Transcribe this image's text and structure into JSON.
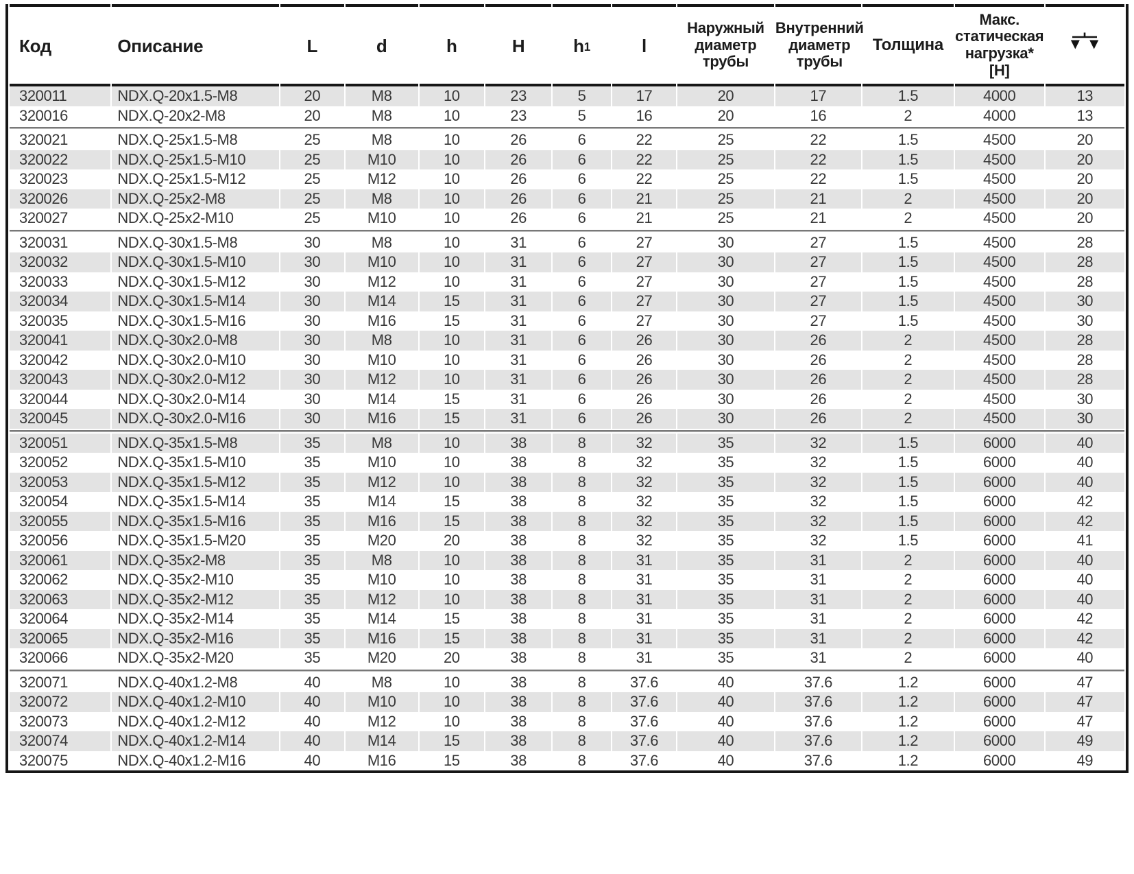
{
  "style": {
    "stripe_color": "#e3e3e3",
    "border_color": "#161616",
    "group_separator_color": "#787878",
    "data_text_color": "#383838",
    "header_text_color": "#1c1c1c"
  },
  "table": {
    "columns": [
      {
        "id": "code",
        "label": "Код",
        "align": "left"
      },
      {
        "id": "description",
        "label": "Описание",
        "align": "left"
      },
      {
        "id": "L",
        "label": "L",
        "align": "center"
      },
      {
        "id": "d",
        "label": "d",
        "align": "center"
      },
      {
        "id": "h",
        "label": "h",
        "align": "center"
      },
      {
        "id": "H",
        "label": "H",
        "align": "center"
      },
      {
        "id": "h1",
        "label": "h",
        "label_sub": "1",
        "align": "center"
      },
      {
        "id": "l",
        "label": "l",
        "align": "center"
      },
      {
        "id": "outer_pipe_diameter",
        "label": "Наружный\nдиаметр\nтрубы",
        "align": "center"
      },
      {
        "id": "inner_pipe_diameter",
        "label": "Внутренний\nдиаметр\nтрубы",
        "align": "center"
      },
      {
        "id": "thickness",
        "label": "Толщина",
        "align": "center"
      },
      {
        "id": "max_static_load",
        "label": "Макс.\nстатическая\nнагрузка*\n[Н]",
        "align": "center"
      },
      {
        "id": "weight",
        "label": "",
        "icon": "balance-scale-icon",
        "align": "center"
      }
    ],
    "groups": [
      {
        "first_shade": "gray",
        "rows": [
          [
            "320011",
            "NDX.Q-20x1.5-M8",
            "20",
            "M8",
            "10",
            "23",
            "5",
            "17",
            "20",
            "17",
            "1.5",
            "4000",
            "13"
          ],
          [
            "320016",
            "NDX.Q-20x2-M8",
            "20",
            "M8",
            "10",
            "23",
            "5",
            "16",
            "20",
            "16",
            "2",
            "4000",
            "13"
          ]
        ]
      },
      {
        "first_shade": "white",
        "rows": [
          [
            "320021",
            "NDX.Q-25x1.5-M8",
            "25",
            "M8",
            "10",
            "26",
            "6",
            "22",
            "25",
            "22",
            "1.5",
            "4500",
            "20"
          ],
          [
            "320022",
            "NDX.Q-25x1.5-M10",
            "25",
            "M10",
            "10",
            "26",
            "6",
            "22",
            "25",
            "22",
            "1.5",
            "4500",
            "20"
          ],
          [
            "320023",
            "NDX.Q-25x1.5-M12",
            "25",
            "M12",
            "10",
            "26",
            "6",
            "22",
            "25",
            "22",
            "1.5",
            "4500",
            "20"
          ],
          [
            "320026",
            "NDX.Q-25x2-M8",
            "25",
            "M8",
            "10",
            "26",
            "6",
            "21",
            "25",
            "21",
            "2",
            "4500",
            "20"
          ],
          [
            "320027",
            "NDX.Q-25x2-M10",
            "25",
            "M10",
            "10",
            "26",
            "6",
            "21",
            "25",
            "21",
            "2",
            "4500",
            "20"
          ]
        ]
      },
      {
        "first_shade": "white",
        "rows": [
          [
            "320031",
            "NDX.Q-30x1.5-M8",
            "30",
            "M8",
            "10",
            "31",
            "6",
            "27",
            "30",
            "27",
            "1.5",
            "4500",
            "28"
          ],
          [
            "320032",
            "NDX.Q-30x1.5-M10",
            "30",
            "M10",
            "10",
            "31",
            "6",
            "27",
            "30",
            "27",
            "1.5",
            "4500",
            "28"
          ],
          [
            "320033",
            "NDX.Q-30x1.5-M12",
            "30",
            "M12",
            "10",
            "31",
            "6",
            "27",
            "30",
            "27",
            "1.5",
            "4500",
            "28"
          ],
          [
            "320034",
            "NDX.Q-30x1.5-M14",
            "30",
            "M14",
            "15",
            "31",
            "6",
            "27",
            "30",
            "27",
            "1.5",
            "4500",
            "30"
          ],
          [
            "320035",
            "NDX.Q-30x1.5-M16",
            "30",
            "M16",
            "15",
            "31",
            "6",
            "27",
            "30",
            "27",
            "1.5",
            "4500",
            "30"
          ],
          [
            "320041",
            "NDX.Q-30x2.0-M8",
            "30",
            "M8",
            "10",
            "31",
            "6",
            "26",
            "30",
            "26",
            "2",
            "4500",
            "28"
          ],
          [
            "320042",
            "NDX.Q-30x2.0-M10",
            "30",
            "M10",
            "10",
            "31",
            "6",
            "26",
            "30",
            "26",
            "2",
            "4500",
            "28"
          ],
          [
            "320043",
            "NDX.Q-30x2.0-M12",
            "30",
            "M12",
            "10",
            "31",
            "6",
            "26",
            "30",
            "26",
            "2",
            "4500",
            "28"
          ],
          [
            "320044",
            "NDX.Q-30x2.0-M14",
            "30",
            "M14",
            "15",
            "31",
            "6",
            "26",
            "30",
            "26",
            "2",
            "4500",
            "30"
          ],
          [
            "320045",
            "NDX.Q-30x2.0-M16",
            "30",
            "M16",
            "15",
            "31",
            "6",
            "26",
            "30",
            "26",
            "2",
            "4500",
            "30"
          ]
        ]
      },
      {
        "first_shade": "gray",
        "rows": [
          [
            "320051",
            "NDX.Q-35x1.5-M8",
            "35",
            "M8",
            "10",
            "38",
            "8",
            "32",
            "35",
            "32",
            "1.5",
            "6000",
            "40"
          ],
          [
            "320052",
            "NDX.Q-35x1.5-M10",
            "35",
            "M10",
            "10",
            "38",
            "8",
            "32",
            "35",
            "32",
            "1.5",
            "6000",
            "40"
          ],
          [
            "320053",
            "NDX.Q-35x1.5-M12",
            "35",
            "M12",
            "10",
            "38",
            "8",
            "32",
            "35",
            "32",
            "1.5",
            "6000",
            "40"
          ],
          [
            "320054",
            "NDX.Q-35x1.5-M14",
            "35",
            "M14",
            "15",
            "38",
            "8",
            "32",
            "35",
            "32",
            "1.5",
            "6000",
            "42"
          ],
          [
            "320055",
            "NDX.Q-35x1.5-M16",
            "35",
            "M16",
            "15",
            "38",
            "8",
            "32",
            "35",
            "32",
            "1.5",
            "6000",
            "42"
          ],
          [
            "320056",
            "NDX.Q-35x1.5-M20",
            "35",
            "M20",
            "20",
            "38",
            "8",
            "32",
            "35",
            "32",
            "1.5",
            "6000",
            "41"
          ],
          [
            "320061",
            "NDX.Q-35x2-M8",
            "35",
            "M8",
            "10",
            "38",
            "8",
            "31",
            "35",
            "31",
            "2",
            "6000",
            "40"
          ],
          [
            "320062",
            "NDX.Q-35x2-M10",
            "35",
            "M10",
            "10",
            "38",
            "8",
            "31",
            "35",
            "31",
            "2",
            "6000",
            "40"
          ],
          [
            "320063",
            "NDX.Q-35x2-M12",
            "35",
            "M12",
            "10",
            "38",
            "8",
            "31",
            "35",
            "31",
            "2",
            "6000",
            "40"
          ],
          [
            "320064",
            "NDX.Q-35x2-M14",
            "35",
            "M14",
            "15",
            "38",
            "8",
            "31",
            "35",
            "31",
            "2",
            "6000",
            "42"
          ],
          [
            "320065",
            "NDX.Q-35x2-M16",
            "35",
            "M16",
            "15",
            "38",
            "8",
            "31",
            "35",
            "31",
            "2",
            "6000",
            "42"
          ],
          [
            "320066",
            "NDX.Q-35x2-M20",
            "35",
            "M20",
            "20",
            "38",
            "8",
            "31",
            "35",
            "31",
            "2",
            "6000",
            "40"
          ]
        ]
      },
      {
        "first_shade": "white",
        "rows": [
          [
            "320071",
            "NDX.Q-40x1.2-M8",
            "40",
            "M8",
            "10",
            "38",
            "8",
            "37.6",
            "40",
            "37.6",
            "1.2",
            "6000",
            "47"
          ],
          [
            "320072",
            "NDX.Q-40x1.2-M10",
            "40",
            "M10",
            "10",
            "38",
            "8",
            "37.6",
            "40",
            "37.6",
            "1.2",
            "6000",
            "47"
          ],
          [
            "320073",
            "NDX.Q-40x1.2-M12",
            "40",
            "M12",
            "10",
            "38",
            "8",
            "37.6",
            "40",
            "37.6",
            "1.2",
            "6000",
            "47"
          ],
          [
            "320074",
            "NDX.Q-40x1.2-M14",
            "40",
            "M14",
            "15",
            "38",
            "8",
            "37.6",
            "40",
            "37.6",
            "1.2",
            "6000",
            "49"
          ],
          [
            "320075",
            "NDX.Q-40x1.2-M16",
            "40",
            "M16",
            "15",
            "38",
            "8",
            "37.6",
            "40",
            "37.6",
            "1.2",
            "6000",
            "49"
          ]
        ]
      }
    ]
  }
}
